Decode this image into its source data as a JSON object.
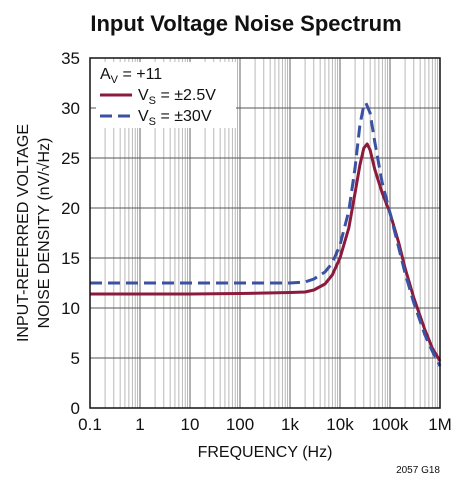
{
  "chart_data": {
    "type": "line",
    "title": "Input Voltage Noise Spectrum",
    "xlabel": "FREQUENCY (Hz)",
    "ylabel_line1": "INPUT-REFERRED VOLTAGE",
    "ylabel_line2": "NOISE DENSITY (nV/√Hz)",
    "x_scale": "log",
    "xlim": [
      0.1,
      1000000
    ],
    "ylim": [
      0,
      35
    ],
    "grid": true,
    "x_ticks": [
      {
        "value": 0.1,
        "label": "0.1"
      },
      {
        "value": 1,
        "label": "1"
      },
      {
        "value": 10,
        "label": "10"
      },
      {
        "value": 100,
        "label": "100"
      },
      {
        "value": 1000,
        "label": "1k"
      },
      {
        "value": 10000,
        "label": "10k"
      },
      {
        "value": 100000,
        "label": "100k"
      },
      {
        "value": 1000000,
        "label": "1M"
      }
    ],
    "y_ticks": [
      {
        "value": 0,
        "label": "0"
      },
      {
        "value": 5,
        "label": "5"
      },
      {
        "value": 10,
        "label": "10"
      },
      {
        "value": 15,
        "label": "15"
      },
      {
        "value": 20,
        "label": "20"
      },
      {
        "value": 25,
        "label": "25"
      },
      {
        "value": 30,
        "label": "30"
      },
      {
        "value": 35,
        "label": "35"
      }
    ],
    "legend": {
      "placement": "top-left",
      "header": {
        "main": "A",
        "sub": "V",
        "rest": " = +11"
      }
    },
    "series": [
      {
        "name_main": "V",
        "name_sub": "S",
        "name_rest": " = ±2.5V",
        "color": "#8b1a3c",
        "dash": "solid",
        "points": [
          [
            0.1,
            11.4
          ],
          [
            1,
            11.4
          ],
          [
            10,
            11.4
          ],
          [
            100,
            11.45
          ],
          [
            1000,
            11.55
          ],
          [
            2000,
            11.6
          ],
          [
            3000,
            11.8
          ],
          [
            5000,
            12.4
          ],
          [
            7000,
            13.3
          ],
          [
            10000,
            15.0
          ],
          [
            15000,
            18.0
          ],
          [
            20000,
            21.5
          ],
          [
            25000,
            24.3
          ],
          [
            30000,
            26.0
          ],
          [
            35000,
            26.4
          ],
          [
            40000,
            25.8
          ],
          [
            50000,
            23.8
          ],
          [
            70000,
            21.5
          ],
          [
            100000,
            19.5
          ],
          [
            150000,
            16.5
          ],
          [
            200000,
            14.0
          ],
          [
            300000,
            11.0
          ],
          [
            500000,
            7.8
          ],
          [
            700000,
            6.0
          ],
          [
            1000000,
            4.7
          ]
        ]
      },
      {
        "name_main": "V",
        "name_sub": "S",
        "name_rest": " = ±30V",
        "color": "#3b52a3",
        "dash": "dashed",
        "points": [
          [
            0.1,
            12.5
          ],
          [
            1,
            12.5
          ],
          [
            10,
            12.5
          ],
          [
            100,
            12.5
          ],
          [
            1000,
            12.5
          ],
          [
            2000,
            12.6
          ],
          [
            3000,
            12.9
          ],
          [
            5000,
            13.6
          ],
          [
            7000,
            14.5
          ],
          [
            10000,
            16.3
          ],
          [
            15000,
            19.7
          ],
          [
            20000,
            24.0
          ],
          [
            25000,
            28.3
          ],
          [
            30000,
            30.3
          ],
          [
            33000,
            30.5
          ],
          [
            40000,
            29.5
          ],
          [
            50000,
            26.5
          ],
          [
            70000,
            22.5
          ],
          [
            100000,
            19.5
          ],
          [
            150000,
            16.0
          ],
          [
            200000,
            13.5
          ],
          [
            300000,
            10.5
          ],
          [
            500000,
            7.3
          ],
          [
            700000,
            5.7
          ],
          [
            1000000,
            4.2
          ]
        ]
      }
    ]
  },
  "figure_id": "2057 G18"
}
